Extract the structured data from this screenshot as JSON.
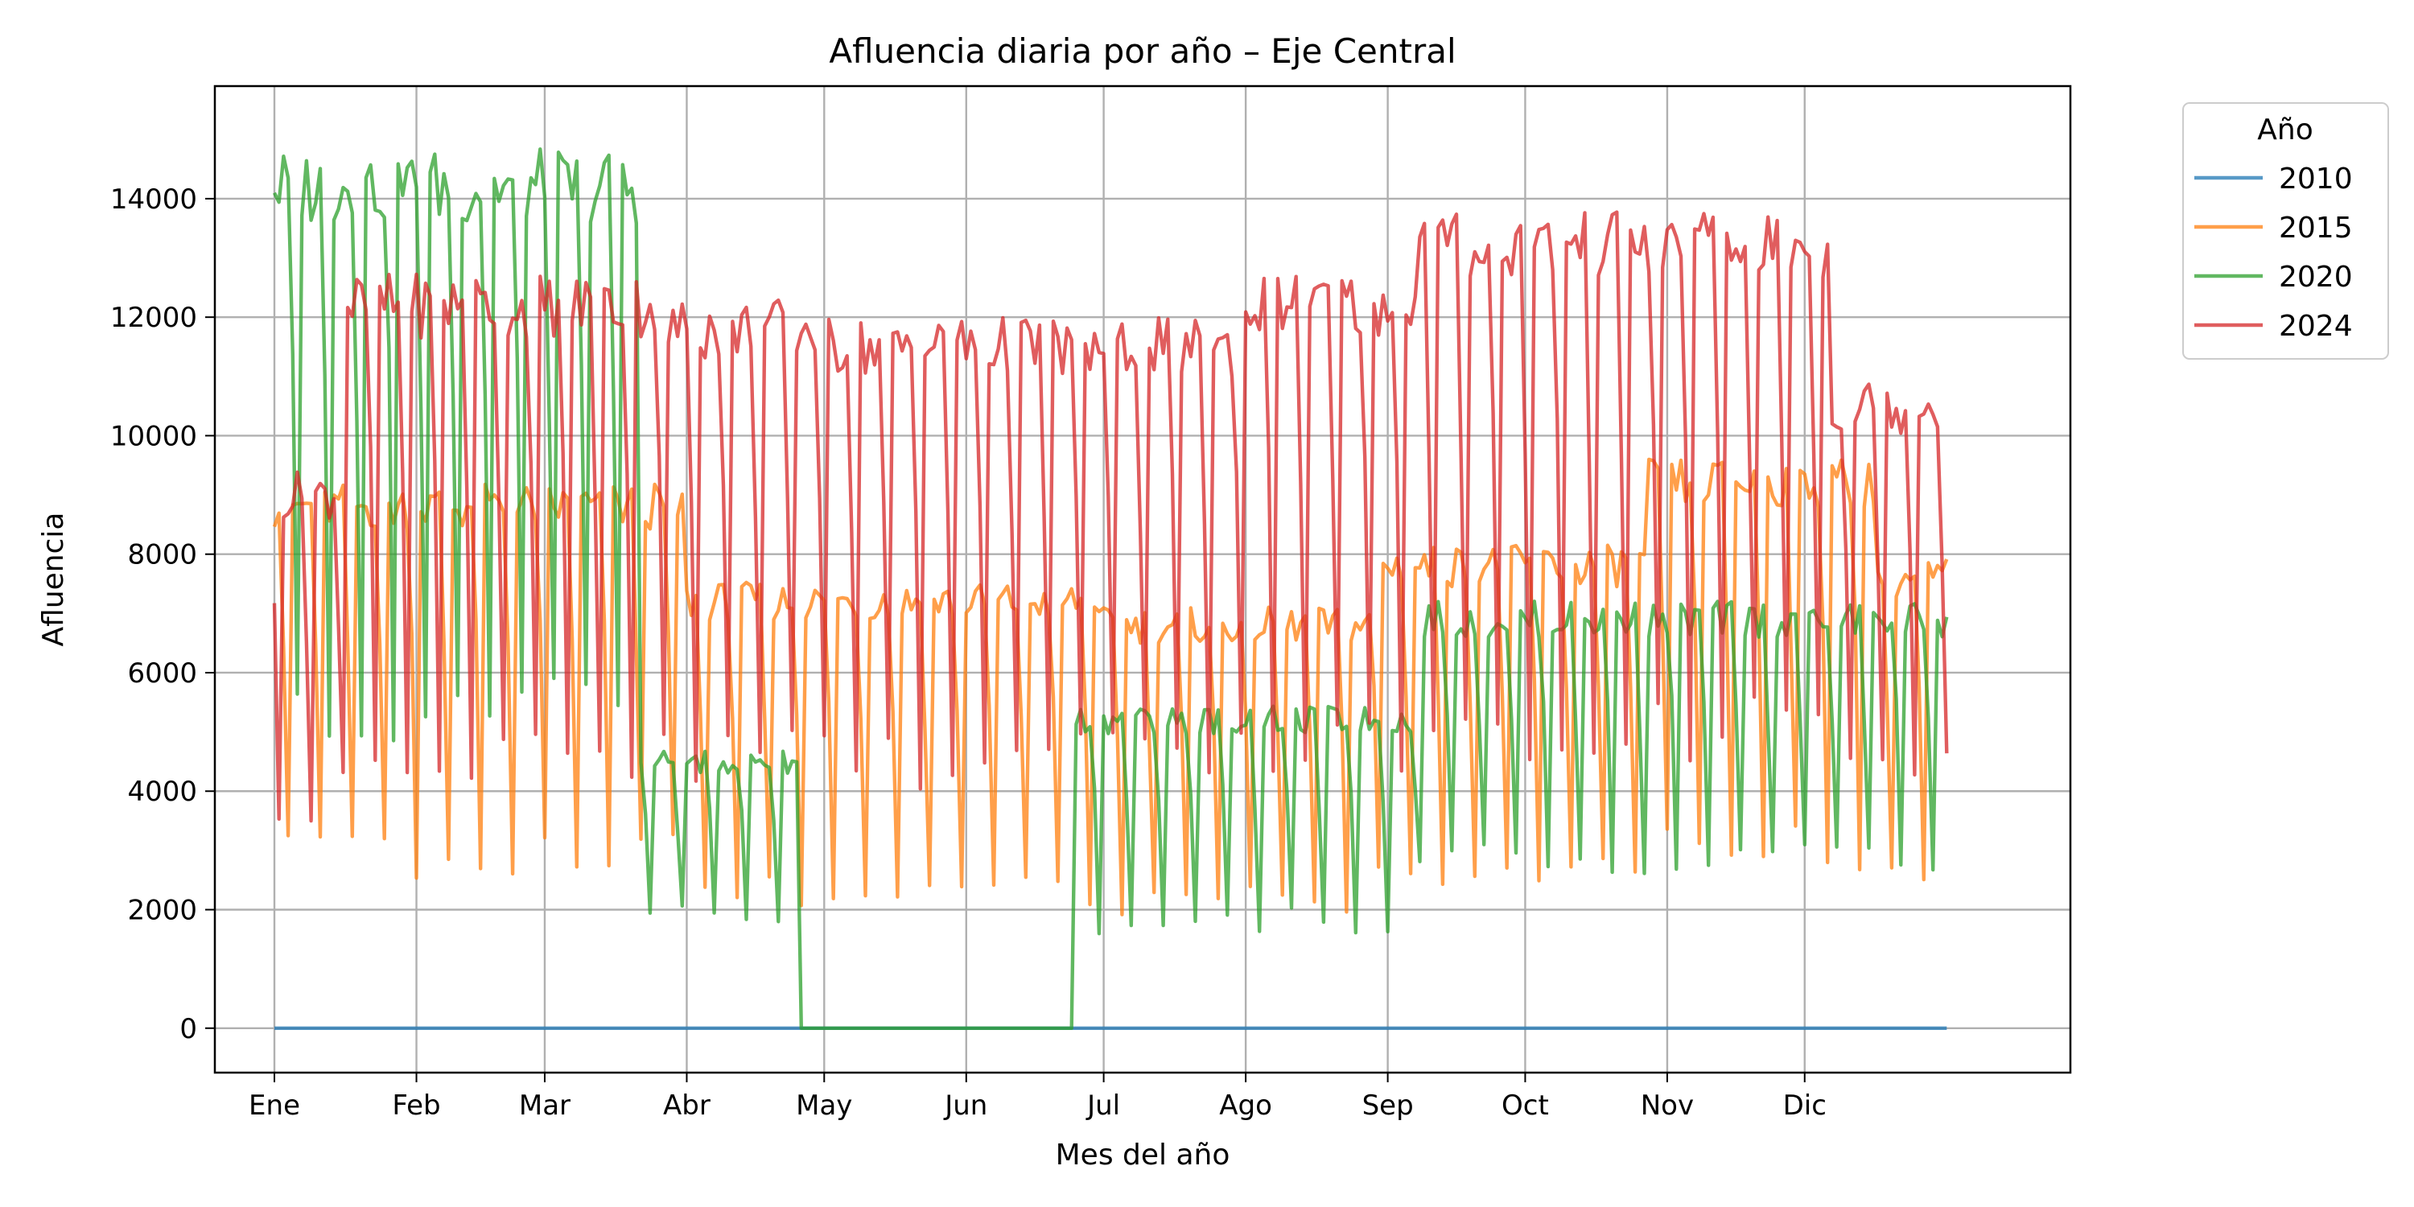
{
  "chart_data": {
    "type": "line",
    "title": "Afluencia diaria por año – Eje Central",
    "xlabel": "Mes del año",
    "ylabel": "Afluencia",
    "x_unit": "day_of_year",
    "xlim": [
      -12,
      393
    ],
    "ylim": [
      -750,
      15900
    ],
    "grid": true,
    "legend": {
      "title": "Año",
      "position": "outside-top-right"
    },
    "x_ticks": [
      {
        "label": "Ene",
        "day": 1
      },
      {
        "label": "Feb",
        "day": 32
      },
      {
        "label": "Mar",
        "day": 60
      },
      {
        "label": "Abr",
        "day": 91
      },
      {
        "label": "May",
        "day": 121
      },
      {
        "label": "Jun",
        "day": 152
      },
      {
        "label": "Jul",
        "day": 182
      },
      {
        "label": "Ago",
        "day": 213
      },
      {
        "label": "Sep",
        "day": 244
      },
      {
        "label": "Oct",
        "day": 274
      },
      {
        "label": "Nov",
        "day": 305
      },
      {
        "label": "Dic",
        "day": 335
      }
    ],
    "y_ticks": [
      0,
      2000,
      4000,
      6000,
      8000,
      10000,
      12000,
      14000
    ],
    "series": [
      {
        "name": "2010",
        "color": "#1f77b4",
        "pattern": "constant",
        "value": 0
      },
      {
        "name": "2015",
        "color": "#ff7f0e",
        "pattern": "weekly",
        "first_low_day": 4,
        "phases": [
          {
            "from": 1,
            "to": 90,
            "weekday": 8800,
            "weekend": 2900
          },
          {
            "from": 91,
            "to": 180,
            "weekday": 7200,
            "weekend": 2300
          },
          {
            "from": 181,
            "to": 240,
            "weekday": 6800,
            "weekend": 2100
          },
          {
            "from": 241,
            "to": 300,
            "weekday": 7800,
            "weekend": 2600
          },
          {
            "from": 301,
            "to": 350,
            "weekday": 9200,
            "weekend": 3000
          },
          {
            "from": 351,
            "to": 366,
            "weekday": 7600,
            "weekend": 2400
          }
        ]
      },
      {
        "name": "2020",
        "color": "#2ca02c",
        "pattern": "weekly",
        "first_low_day": 6,
        "phases": [
          {
            "from": 1,
            "to": 80,
            "weekday": 14200,
            "weekend": 5400
          },
          {
            "from": 81,
            "to": 115,
            "weekday": 4500,
            "weekend": 1900
          },
          {
            "from": 116,
            "to": 175,
            "weekday": 0,
            "weekend": 0
          },
          {
            "from": 176,
            "to": 250,
            "weekday": 5200,
            "weekend": 1800
          },
          {
            "from": 251,
            "to": 366,
            "weekday": 6900,
            "weekend": 2800
          }
        ]
      },
      {
        "name": "2024",
        "color": "#d62728",
        "pattern": "weekly",
        "first_low_day": 2,
        "phases": [
          {
            "from": 1,
            "to": 15,
            "weekday": 9000,
            "weekend": 3500
          },
          {
            "from": 16,
            "to": 85,
            "weekday": 12200,
            "weekend": 4600
          },
          {
            "from": 86,
            "to": 120,
            "weekday": 11800,
            "weekend": 4600
          },
          {
            "from": 121,
            "to": 210,
            "weekday": 11500,
            "weekend": 4500
          },
          {
            "from": 211,
            "to": 250,
            "weekday": 12200,
            "weekend": 4800
          },
          {
            "from": 251,
            "to": 340,
            "weekday": 13200,
            "weekend": 5000
          },
          {
            "from": 341,
            "to": 366,
            "weekday": 10500,
            "weekend": 4500
          }
        ]
      }
    ]
  }
}
